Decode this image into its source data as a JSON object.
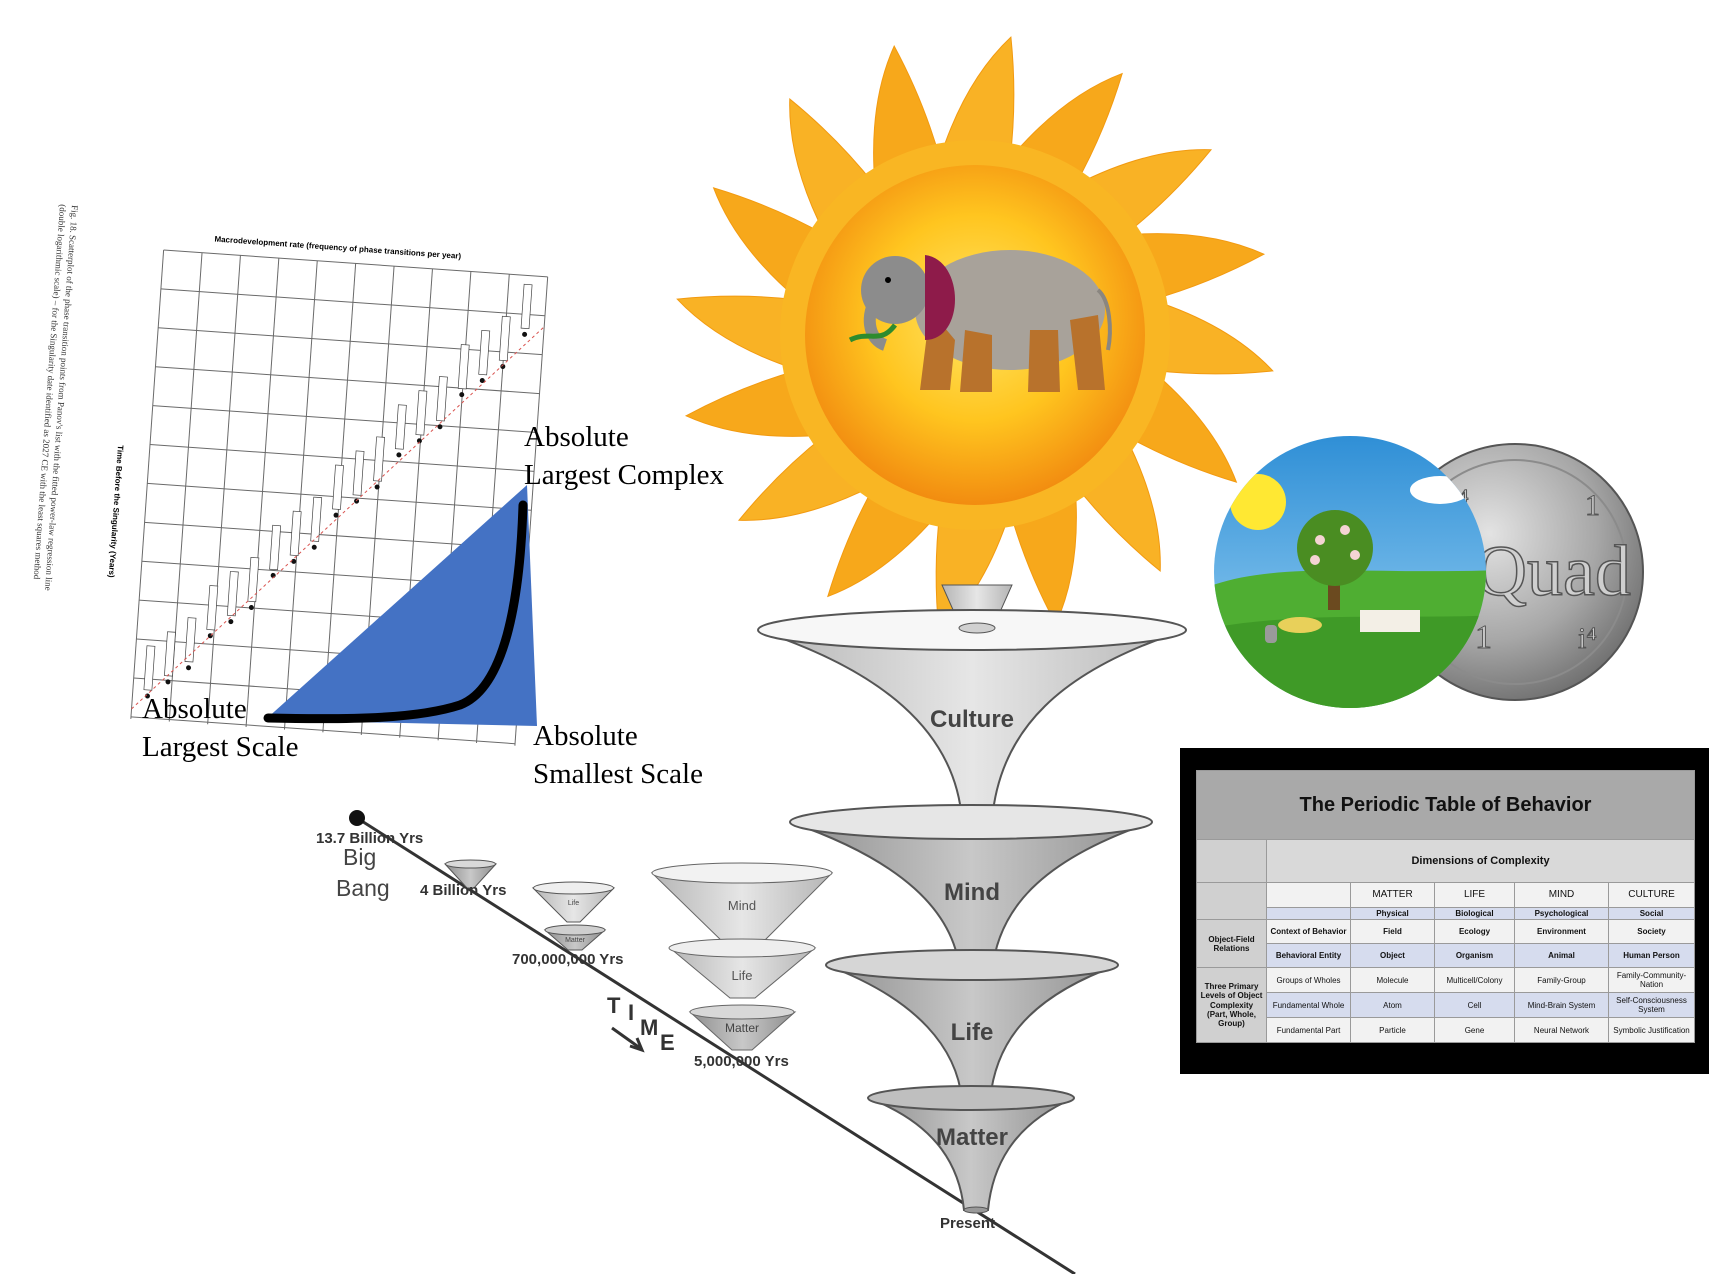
{
  "macro_chart": {
    "title": "Macrodevelopment rate (frequency of phase transitions per year)",
    "ylabel": "Time Before the Singularity (Years)",
    "caption_line1": "Fig. 18. Scatterplot of the phase transition points from Panov's list with the fitted power-law regression line",
    "caption_line2": "(double logarithmic scale) – for the Singularity date identified as 2027 CE with the least squares method"
  },
  "triangle_labels": {
    "top_right_1": "Absolute",
    "top_right_2": "Largest Complex",
    "bottom_left_1": "Absolute",
    "bottom_left_2": "Largest Scale",
    "bottom_right_1": "Absolute",
    "bottom_right_2": "Smallest Scale"
  },
  "timeline": {
    "big_bang_years": "13.7 Billion Yrs",
    "big_bang_1": "Big",
    "big_bang_2": "Bang",
    "four_billion": "4 Billion Yrs",
    "seven_hundred_million": "700,000,000 Yrs",
    "five_million": "5,000,000 Yrs",
    "time_letters": [
      "T",
      "I",
      "M",
      "E"
    ],
    "present": "Present",
    "small_mind": "Mind",
    "small_life": "Life",
    "small_matter": "Matter",
    "tiny_life": "Life",
    "tiny_matter": "Matter"
  },
  "funnels": {
    "culture": "Culture",
    "mind": "Mind",
    "life": "Life",
    "matter": "Matter"
  },
  "coin": {
    "word": "Quad",
    "top_left": "i⁴",
    "top_right": "1",
    "bottom_left": "1",
    "bottom_right": "i⁴"
  },
  "periodic_table": {
    "title": "The Periodic Table of Behavior",
    "dimensions": "Dimensions of Complexity",
    "columns": [
      "MATTER",
      "LIFE",
      "MIND",
      "CULTURE"
    ],
    "subcolumns": [
      "Physical",
      "Biological",
      "Psychological",
      "Social"
    ],
    "group1_label": "Object-Field Relations",
    "group2_label": "Three Primary Levels of Object Complexity (Part, Whole, Group)",
    "rows": [
      {
        "label": "Context of Behavior",
        "cells": [
          "Field",
          "Ecology",
          "Environment",
          "Society"
        ]
      },
      {
        "label": "Behavioral Entity",
        "cells": [
          "Object",
          "Organism",
          "Animal",
          "Human Person"
        ]
      },
      {
        "label": "Groups of Wholes",
        "cells": [
          "Molecule",
          "Multicell/Colony",
          "Family-Group",
          "Family-Community-Nation"
        ]
      },
      {
        "label": "Fundamental Whole",
        "cells": [
          "Atom",
          "Cell",
          "Mind-Brain System",
          "Self-Consciousness System"
        ]
      },
      {
        "label": "Fundamental Part",
        "cells": [
          "Particle",
          "Gene",
          "Neural Network",
          "Symbolic Justification"
        ]
      }
    ]
  },
  "colors": {
    "triangle_blue": "#4472c4",
    "sun_outer": "#f7a81b",
    "sun_inner": "#ffd23a",
    "funnel_gray": "#b9b9b9",
    "table_black": "#000000"
  }
}
